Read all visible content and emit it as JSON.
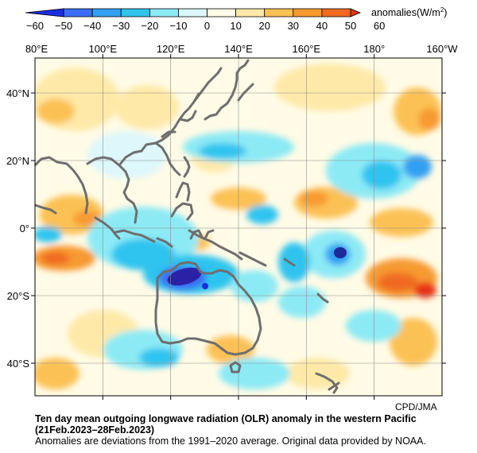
{
  "colorbar": {
    "title_prefix": "anomalies(W/m",
    "title_sup": "2",
    "title_suffix": ")",
    "ticks": [
      "−60",
      "−50",
      "−40",
      "−30",
      "−20",
      "−10",
      "0",
      "10",
      "20",
      "30",
      "40",
      "50",
      "60"
    ],
    "colors": [
      "#1a2ee0",
      "#3a6ef4",
      "#33a0f2",
      "#2ec4ef",
      "#8ceaf5",
      "#ddf7fb",
      "#fffbe6",
      "#ffe9a8",
      "#fcc155",
      "#f79a30",
      "#f06a20",
      "#e83216"
    ]
  },
  "map": {
    "lon_labels": [
      "80°E",
      "100°E",
      "120°E",
      "140°E",
      "160°E",
      "180°",
      "160°W"
    ],
    "lat_labels": [
      "40°N",
      "20°N",
      "0°",
      "20°S",
      "40°S"
    ],
    "coastline_color": "#6e6e6e",
    "grid_color": "#8c8c8c"
  },
  "credit": "CPD/JMA",
  "caption": {
    "title": "Ten day mean outgoing longwave radiation (OLR) anomaly in the western Pacific",
    "date_range": "(21Feb.2023–28Feb.2023)",
    "note": "Anomalies are deviations from the 1991–2020 average. Original data provided by NOAA."
  }
}
